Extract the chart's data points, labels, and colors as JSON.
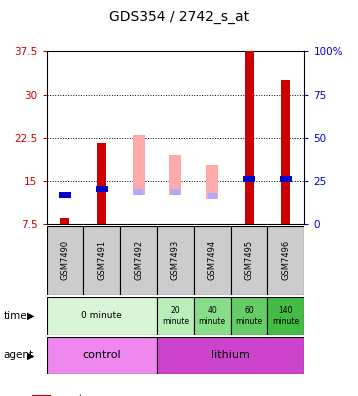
{
  "title": "GDS354 / 2742_s_at",
  "samples": [
    "GSM7490",
    "GSM7491",
    "GSM7492",
    "GSM7493",
    "GSM7494",
    "GSM7495",
    "GSM7496"
  ],
  "ylim_left": [
    7.5,
    37.5
  ],
  "ylim_right": [
    0,
    100
  ],
  "left_ticks": [
    7.5,
    15,
    22.5,
    30,
    37.5
  ],
  "right_ticks": [
    0,
    25,
    50,
    75,
    100
  ],
  "right_tick_labels": [
    "0",
    "25",
    "50",
    "75",
    "100%"
  ],
  "red_bars": {
    "values": [
      1.0,
      14.0,
      0,
      0,
      0,
      30.0,
      25.0
    ],
    "bottom": [
      7.5,
      7.5,
      0,
      0,
      0,
      7.5,
      7.5
    ]
  },
  "pink_bars": {
    "values": [
      0,
      0,
      10.5,
      7.0,
      6.0,
      0,
      0
    ],
    "bottom": [
      0,
      0,
      12.5,
      12.5,
      11.8,
      0,
      0
    ]
  },
  "blue_bars": {
    "values": [
      1.0,
      1.0,
      0,
      0,
      0,
      1.0,
      1.0
    ],
    "bottom": [
      12.0,
      13.0,
      0,
      0,
      0,
      14.8,
      14.8
    ]
  },
  "light_blue_bars": {
    "values": [
      0,
      0,
      1.0,
      1.0,
      1.0,
      0,
      0
    ],
    "bottom": [
      0,
      0,
      12.5,
      12.5,
      11.8,
      0,
      0
    ]
  },
  "time_groups": [
    {
      "label": "0 minute",
      "span": [
        0,
        3
      ],
      "color": "#d8f5d8"
    },
    {
      "label": "20\nminute",
      "span": [
        3,
        4
      ],
      "color": "#b8eeb8"
    },
    {
      "label": "40\nminute",
      "span": [
        4,
        5
      ],
      "color": "#88dd88"
    },
    {
      "label": "60\nminute",
      "span": [
        5,
        6
      ],
      "color": "#66cc66"
    },
    {
      "label": "140\nminute",
      "span": [
        6,
        7
      ],
      "color": "#44bb44"
    }
  ],
  "agent_groups": [
    {
      "label": "control",
      "span": [
        0,
        3
      ],
      "color": "#ee88ee"
    },
    {
      "label": "lithium",
      "span": [
        3,
        7
      ],
      "color": "#cc44cc"
    }
  ],
  "colors": {
    "red": "#cc0000",
    "pink": "#ffaaaa",
    "blue": "#0000cc",
    "light_blue": "#aaaaff",
    "axis_left": "#cc0000",
    "axis_right": "#0000cc",
    "sample_bg": "#cccccc"
  }
}
